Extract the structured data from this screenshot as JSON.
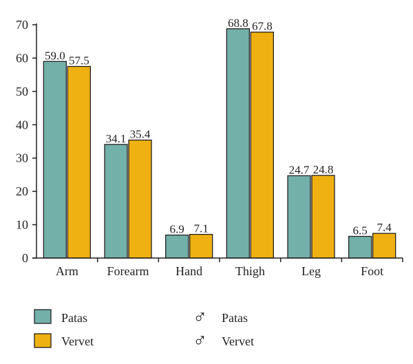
{
  "chart_data": {
    "type": "bar",
    "categories": [
      "Arm",
      "Forearm",
      "Hand",
      "Thigh",
      "Leg",
      "Foot"
    ],
    "series": [
      {
        "name": "Patas",
        "sex_symbol": "♂",
        "color": "#73b0a9",
        "values": [
          59.0,
          34.1,
          6.9,
          68.8,
          24.7,
          6.5
        ],
        "labels": [
          "59.0",
          "34.1",
          "6.9",
          "68.8",
          "24.7",
          "6.5"
        ]
      },
      {
        "name": "Vervet",
        "sex_symbol": "♂",
        "color": "#eeb111",
        "values": [
          57.5,
          35.4,
          7.1,
          67.8,
          24.8,
          7.4
        ],
        "labels": [
          "57.5",
          "35.4",
          "7.1",
          "67.8",
          "24.8",
          "7.4"
        ]
      }
    ],
    "ylim": [
      0,
      70
    ],
    "yticks": [
      0,
      10,
      20,
      30,
      40,
      50,
      60,
      70
    ],
    "title": "",
    "xlabel": "",
    "ylabel": "",
    "legend_placement": "bottom"
  }
}
